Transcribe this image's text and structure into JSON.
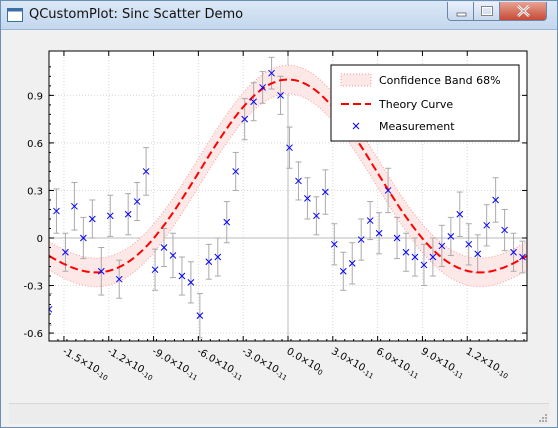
{
  "window": {
    "title": "QCustomPlot: Sinc Scatter Demo"
  },
  "colors": {
    "band_fill": "#fde8e8",
    "band_edge": "#ff9999",
    "theory": "#ff0000",
    "measurement": "#0000ff",
    "error_bar": "#aaaaaa"
  },
  "chart_data": {
    "type": "scatter",
    "xlim": [
      -1.6e-10,
      1.6e-10
    ],
    "ylim": [
      -0.65,
      1.18
    ],
    "grid": true,
    "xticks": [
      {
        "v": -1.5e-10,
        "label": "-1.5×10",
        "exp": "-10"
      },
      {
        "v": -1.2e-10,
        "label": "-1.2×10",
        "exp": "-10"
      },
      {
        "v": -9e-11,
        "label": "-9.0×10",
        "exp": "-11"
      },
      {
        "v": -6e-11,
        "label": "-6.0×10",
        "exp": "-11"
      },
      {
        "v": -3e-11,
        "label": "-3.0×10",
        "exp": "-11"
      },
      {
        "v": 0,
        "label": "0.0×10",
        "exp": "0"
      },
      {
        "v": 3e-11,
        "label": "3.0×10",
        "exp": "-11"
      },
      {
        "v": 6e-11,
        "label": "6.0×10",
        "exp": "-11"
      },
      {
        "v": 9e-11,
        "label": "9.0×10",
        "exp": "-11"
      },
      {
        "v": 1.2e-10,
        "label": "1.2×10",
        "exp": "-10"
      }
    ],
    "yticks": [
      {
        "v": -0.6,
        "label": "-0.6"
      },
      {
        "v": -0.3,
        "label": "-0.3"
      },
      {
        "v": 0,
        "label": "0"
      },
      {
        "v": 0.3,
        "label": "0.3"
      },
      {
        "v": 0.6,
        "label": "0.6"
      },
      {
        "v": 0.9,
        "label": "0.9"
      }
    ],
    "legend": {
      "position": "top-right",
      "band": "Confidence Band 68%",
      "theory": "Theory Curve",
      "measurement": "Measurement"
    },
    "band_halfwidth": 0.09,
    "measurements": {
      "x": [
        -1.6e-10,
        -1.55e-10,
        -1.49e-10,
        -1.43e-10,
        -1.37e-10,
        -1.31e-10,
        -1.25e-10,
        -1.19e-10,
        -1.13e-10,
        -1.07e-10,
        -1.01e-10,
        -9.5e-11,
        -8.9e-11,
        -8.3e-11,
        -7.7e-11,
        -7.1e-11,
        -6.5e-11,
        -5.9e-11,
        -5.3e-11,
        -4.7e-11,
        -4.1e-11,
        -3.5e-11,
        -2.9e-11,
        -2.3e-11,
        -1.7e-11,
        -1.1e-11,
        -5e-12,
        1e-12,
        7e-12,
        1.3e-11,
        1.9e-11,
        2.5e-11,
        3.1e-11,
        3.7e-11,
        4.3e-11,
        4.9e-11,
        5.5e-11,
        6.1e-11,
        6.7e-11,
        7.3e-11,
        7.9e-11,
        8.5e-11,
        9.1e-11,
        9.7e-11,
        1.03e-10,
        1.09e-10,
        1.15e-10,
        1.21e-10,
        1.27e-10,
        1.33e-10,
        1.39e-10,
        1.45e-10,
        1.51e-10,
        1.57e-10
      ],
      "y": [
        -0.45,
        0.17,
        -0.09,
        0.2,
        0.0,
        0.12,
        -0.21,
        0.14,
        -0.26,
        0.15,
        0.23,
        0.42,
        -0.2,
        -0.06,
        -0.11,
        -0.24,
        -0.28,
        -0.49,
        -0.15,
        -0.12,
        0.1,
        0.42,
        0.75,
        0.86,
        0.95,
        1.04,
        0.9,
        0.57,
        0.36,
        0.25,
        0.14,
        0.29,
        -0.04,
        -0.21,
        -0.16,
        -0.01,
        0.11,
        0.03,
        0.3,
        0.0,
        -0.09,
        -0.12,
        -0.17,
        -0.12,
        -0.05,
        0.01,
        0.15,
        -0.04,
        -0.1,
        0.08,
        0.24,
        0.05,
        -0.09,
        -0.12
      ],
      "err": [
        0.1,
        0.14,
        0.12,
        0.15,
        0.13,
        0.12,
        0.15,
        0.13,
        0.12,
        0.13,
        0.12,
        0.15,
        0.13,
        0.12,
        0.14,
        0.12,
        0.13,
        0.14,
        0.11,
        0.12,
        0.13,
        0.12,
        0.13,
        0.12,
        0.1,
        0.1,
        0.12,
        0.13,
        0.12,
        0.13,
        0.12,
        0.14,
        0.13,
        0.12,
        0.13,
        0.13,
        0.12,
        0.13,
        0.14,
        0.13,
        0.12,
        0.12,
        0.13,
        0.12,
        0.13,
        0.12,
        0.14,
        0.13,
        0.12,
        0.13,
        0.14,
        0.13,
        0.12,
        0.1
      ]
    }
  }
}
